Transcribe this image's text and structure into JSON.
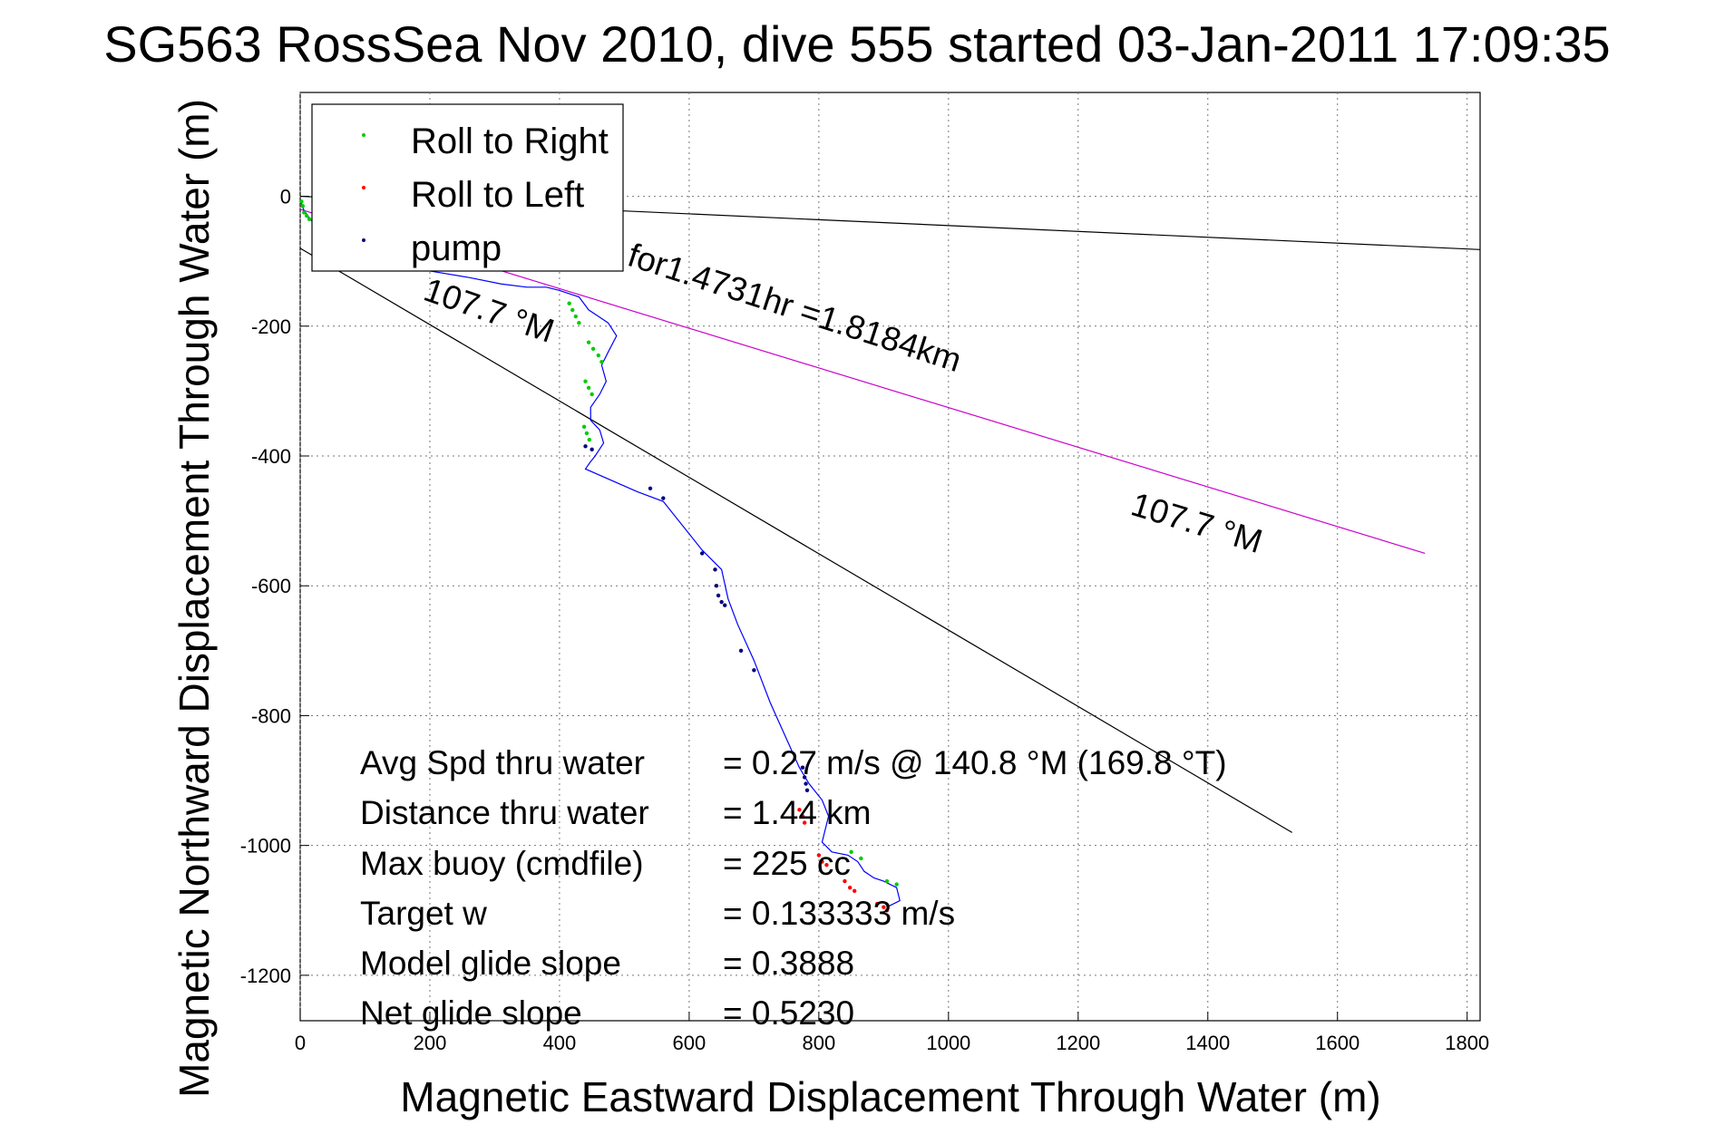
{
  "chart_data": {
    "type": "scatter",
    "title": "SG5‌63 RossSea Nov 2010, dive 555 started 03-Jan-2011 17:09:35",
    "xlabel": "Magnetic Eastward Displacement Through Water (m)",
    "ylabel": "Magnetic Northward Displacement Through Water (m)",
    "xlim": [
      0,
      1820
    ],
    "ylim": [
      -1270,
      160
    ],
    "xticks": [
      0,
      200,
      400,
      600,
      800,
      1000,
      1200,
      1400,
      1600,
      1800
    ],
    "yticks": [
      0,
      -200,
      -400,
      -600,
      -800,
      -1000,
      -1200
    ],
    "grid": true,
    "legend": {
      "placement": "top-left",
      "entries": [
        {
          "label": "Roll to Right",
          "color": "#00cc00"
        },
        {
          "label": "Roll to Left",
          "color": "#ff0000"
        },
        {
          "label": "pump",
          "color": "#000080"
        }
      ]
    },
    "reference_lines": [
      {
        "name": "heading",
        "color": "#000000",
        "points": [
          [
            0,
            0
          ],
          [
            1820,
            -82
          ]
        ]
      },
      {
        "name": "course",
        "color": "#000000",
        "points": [
          [
            0,
            -80
          ],
          [
            1530,
            -980
          ]
        ]
      },
      {
        "name": "target",
        "color": "#cc00cc",
        "points": [
          [
            0,
            -20
          ],
          [
            1735,
            -550
          ]
        ]
      }
    ],
    "track": [
      [
        0,
        -5
      ],
      [
        5,
        -20
      ],
      [
        15,
        -35
      ],
      [
        35,
        -55
      ],
      [
        80,
        -75
      ],
      [
        140,
        -95
      ],
      [
        200,
        -115
      ],
      [
        260,
        -125
      ],
      [
        310,
        -135
      ],
      [
        350,
        -140
      ],
      [
        380,
        -140
      ],
      [
        400,
        -145
      ],
      [
        430,
        -155
      ],
      [
        445,
        -175
      ],
      [
        460,
        -185
      ],
      [
        475,
        -195
      ],
      [
        488,
        -215
      ],
      [
        475,
        -240
      ],
      [
        465,
        -260
      ],
      [
        472,
        -285
      ],
      [
        462,
        -305
      ],
      [
        448,
        -325
      ],
      [
        448,
        -345
      ],
      [
        462,
        -360
      ],
      [
        468,
        -380
      ],
      [
        455,
        -400
      ],
      [
        447,
        -410
      ],
      [
        440,
        -420
      ],
      [
        520,
        -455
      ],
      [
        560,
        -470
      ],
      [
        620,
        -545
      ],
      [
        650,
        -575
      ],
      [
        660,
        -620
      ],
      [
        675,
        -660
      ],
      [
        700,
        -715
      ],
      [
        725,
        -780
      ],
      [
        752,
        -840
      ],
      [
        770,
        -880
      ],
      [
        785,
        -905
      ],
      [
        805,
        -930
      ],
      [
        815,
        -955
      ],
      [
        810,
        -975
      ],
      [
        805,
        -995
      ],
      [
        820,
        -1010
      ],
      [
        845,
        -1015
      ],
      [
        860,
        -1025
      ],
      [
        870,
        -1040
      ],
      [
        885,
        -1050
      ],
      [
        900,
        -1055
      ],
      [
        920,
        -1065
      ],
      [
        925,
        -1085
      ],
      [
        905,
        -1095
      ]
    ],
    "roll_right": [
      [
        2,
        -8
      ],
      [
        4,
        -15
      ],
      [
        6,
        -25
      ],
      [
        10,
        -30
      ],
      [
        14,
        -35
      ],
      [
        415,
        -165
      ],
      [
        420,
        -175
      ],
      [
        425,
        -185
      ],
      [
        430,
        -195
      ],
      [
        445,
        -225
      ],
      [
        452,
        -235
      ],
      [
        460,
        -245
      ],
      [
        465,
        -255
      ],
      [
        440,
        -285
      ],
      [
        445,
        -295
      ],
      [
        450,
        -305
      ],
      [
        438,
        -355
      ],
      [
        442,
        -365
      ],
      [
        446,
        -375
      ],
      [
        850,
        -1010
      ],
      [
        865,
        -1020
      ],
      [
        905,
        -1055
      ],
      [
        920,
        -1060
      ]
    ],
    "roll_left": [
      [
        770,
        -945
      ],
      [
        775,
        -955
      ],
      [
        778,
        -965
      ],
      [
        800,
        -1015
      ],
      [
        805,
        -1025
      ],
      [
        812,
        -1030
      ],
      [
        840,
        -1055
      ],
      [
        848,
        -1065
      ],
      [
        855,
        -1070
      ],
      [
        890,
        -1090
      ],
      [
        900,
        -1095
      ],
      [
        905,
        -1100
      ]
    ],
    "pump": [
      [
        440,
        -385
      ],
      [
        450,
        -390
      ],
      [
        540,
        -450
      ],
      [
        560,
        -465
      ],
      [
        620,
        -550
      ],
      [
        640,
        -575
      ],
      [
        642,
        -600
      ],
      [
        645,
        -615
      ],
      [
        650,
        -625
      ],
      [
        655,
        -630
      ],
      [
        680,
        -700
      ],
      [
        700,
        -730
      ],
      [
        775,
        -880
      ],
      [
        778,
        -895
      ],
      [
        780,
        -905
      ],
      [
        782,
        -915
      ]
    ]
  },
  "annotations": {
    "ref_label_1": "107.7 °M",
    "ref_label_2": "107.7 °M",
    "distance_label": "for1.4731hr =1.8184km"
  },
  "stats": [
    {
      "label": "Avg Spd thru water",
      "value": "=  0.27 m/s @ 140.8 °M (169.8 °T)"
    },
    {
      "label": "Distance thru water",
      "value": "=  1.44 km"
    },
    {
      "label": "Max buoy (cmdfile)",
      "value": "= 225 cc"
    },
    {
      "label": "Target w",
      "value": "= 0.133333 m/s"
    },
    {
      "label": "Model glide slope",
      "value": "= 0.3888"
    },
    {
      "label": "Net glide slope",
      "value": "= 0.5230"
    }
  ]
}
